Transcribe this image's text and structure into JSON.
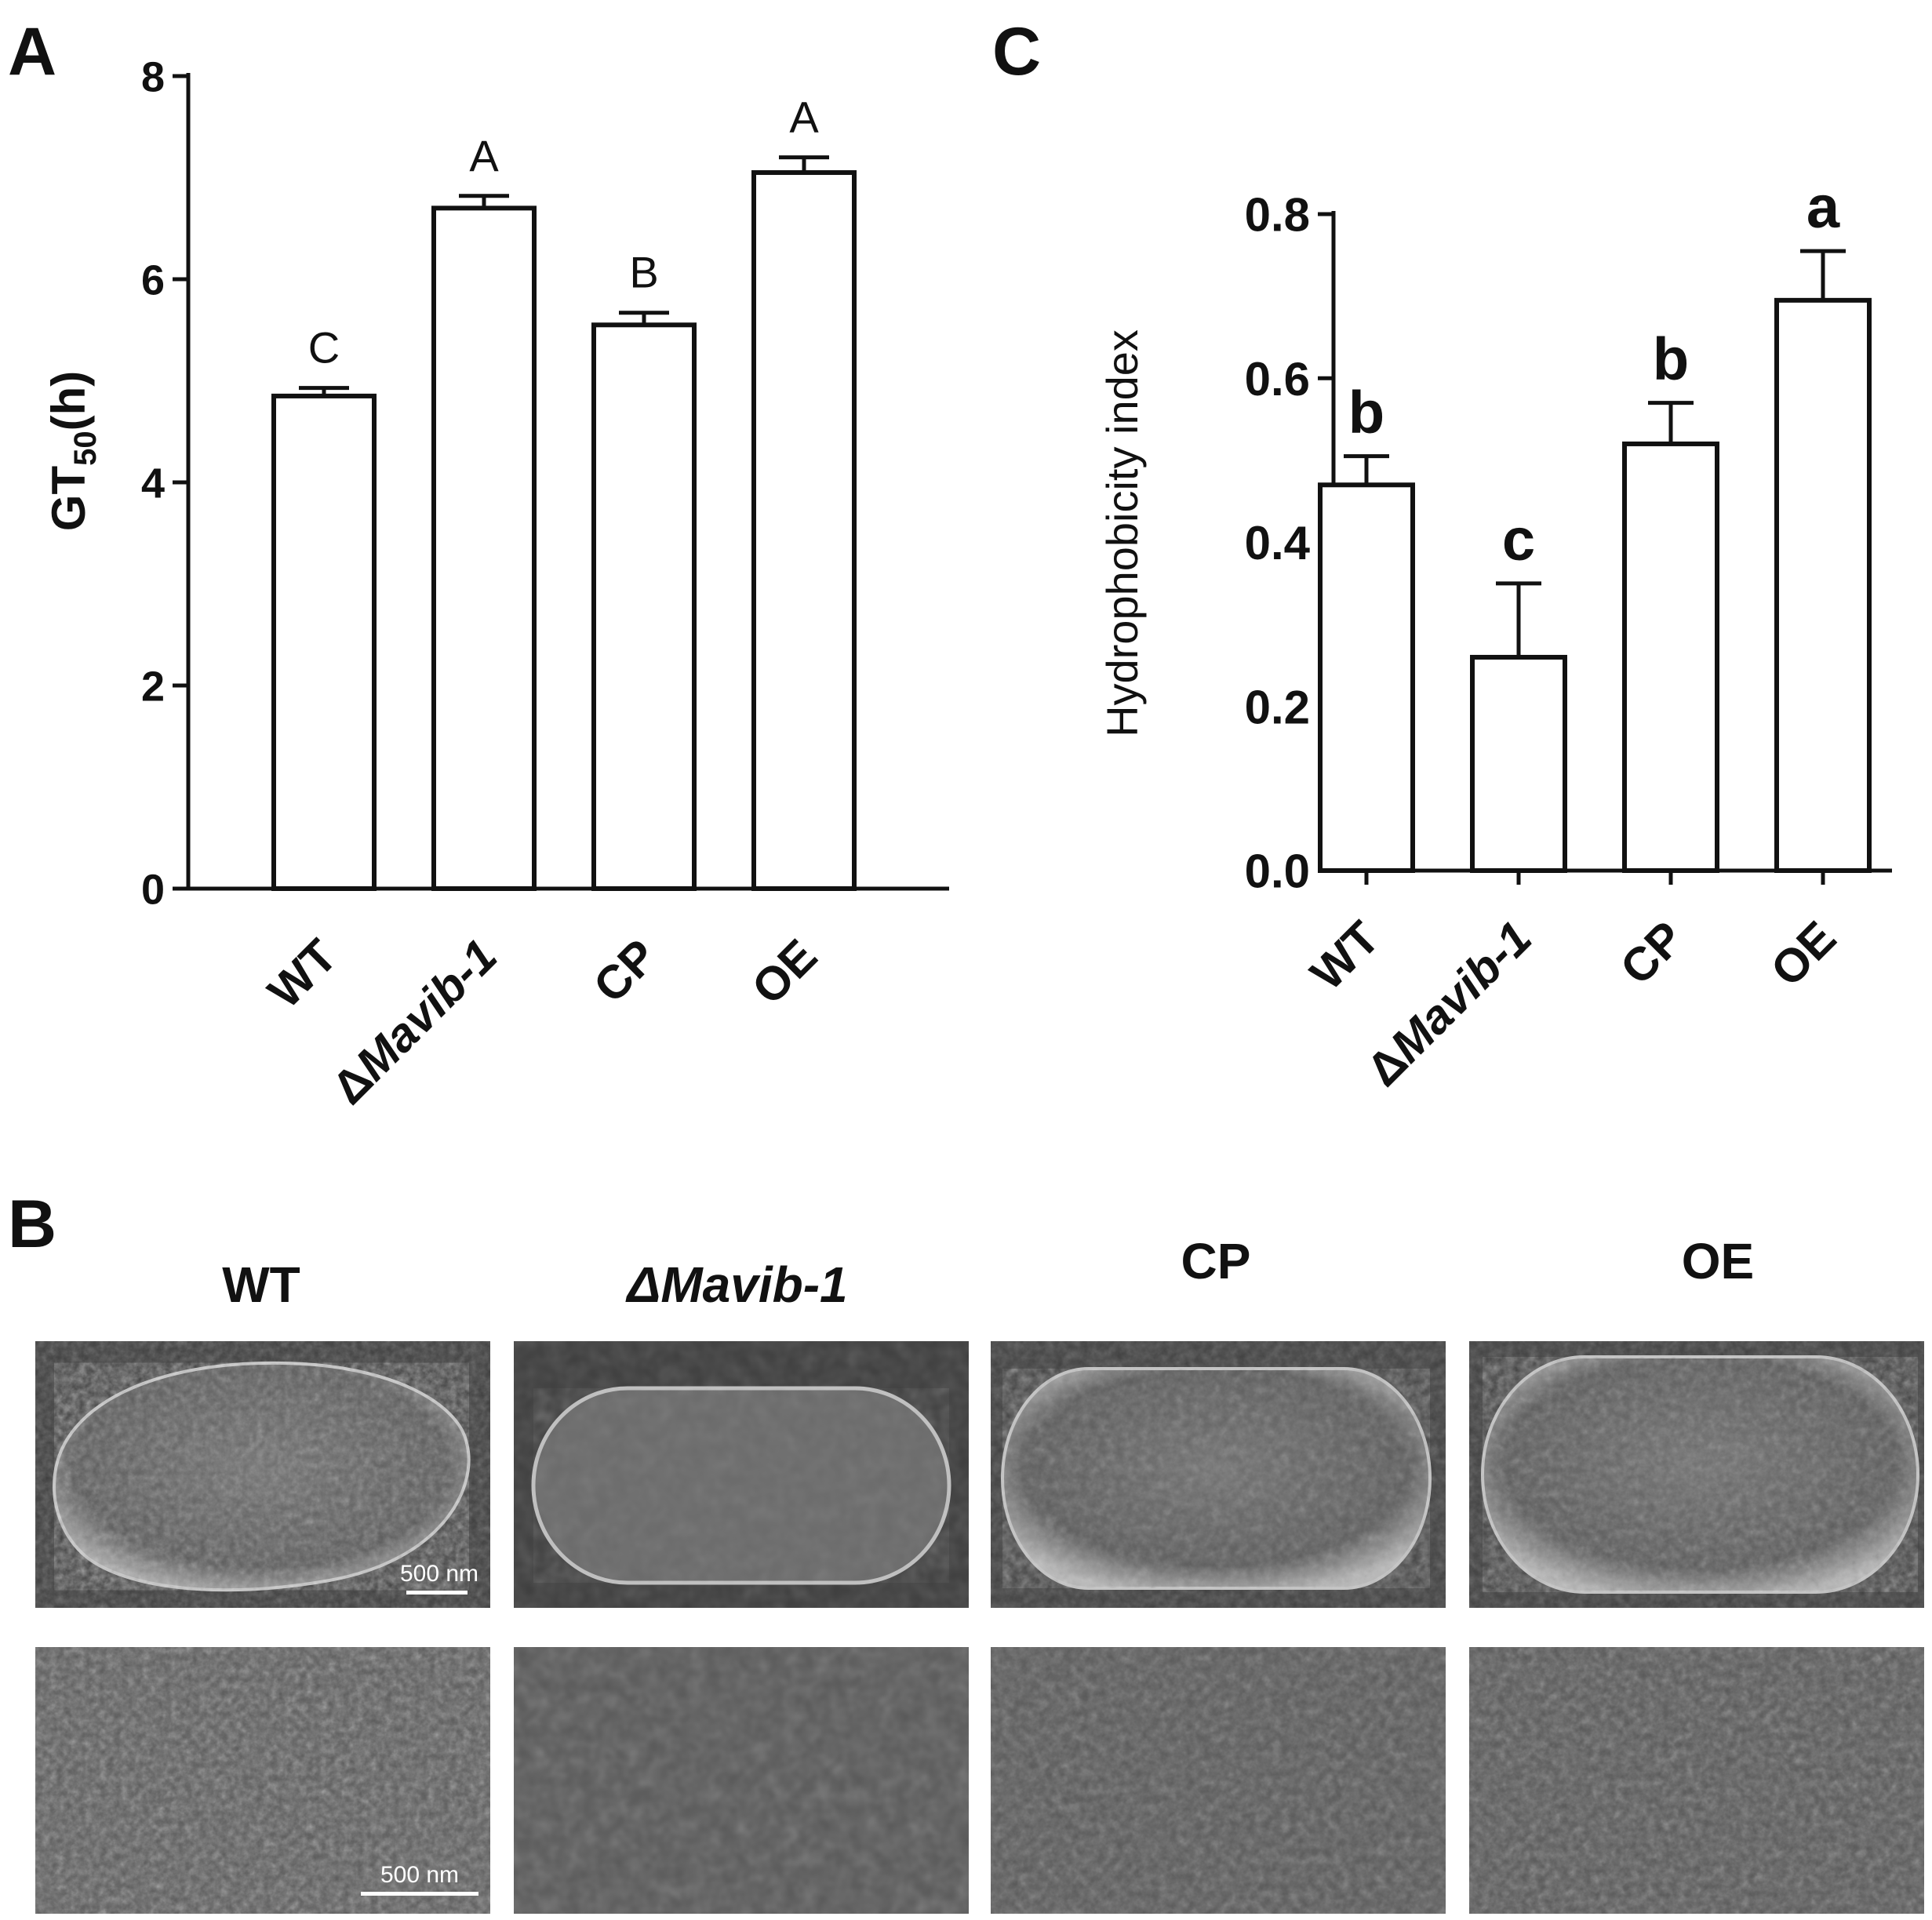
{
  "panels": {
    "a": "A",
    "b": "B",
    "c": "C"
  },
  "chart_data": [
    {
      "type": "bar",
      "panel": "A",
      "categories": [
        "WT",
        "ΔMavib-1",
        "CP",
        "OE"
      ],
      "values": [
        4.85,
        6.7,
        5.55,
        7.05
      ],
      "errors": [
        0.08,
        0.12,
        0.12,
        0.15
      ],
      "significance": [
        "C",
        "A",
        "B",
        "A"
      ],
      "ylabel_main": "GT",
      "ylabel_sub": "50",
      "ylabel_unit": "(h)",
      "ylim": [
        0,
        8
      ],
      "yticks": [
        0,
        2,
        4,
        6,
        8
      ]
    },
    {
      "type": "bar",
      "panel": "C",
      "categories": [
        "WT",
        "ΔMavib-1",
        "CP",
        "OE"
      ],
      "values": [
        0.47,
        0.26,
        0.52,
        0.695
      ],
      "errors": [
        0.035,
        0.09,
        0.05,
        0.06
      ],
      "significance": [
        "b",
        "c",
        "b",
        "a"
      ],
      "ylabel": "Hydrophobicity index",
      "ylim": [
        0,
        0.8
      ],
      "yticks": [
        "0.0",
        "0.2",
        "0.4",
        "0.6",
        "0.8"
      ]
    }
  ],
  "sem": {
    "titles": [
      "WT",
      "ΔMavib-1",
      "CP",
      "OE"
    ],
    "scale_bar": "500 nm"
  }
}
